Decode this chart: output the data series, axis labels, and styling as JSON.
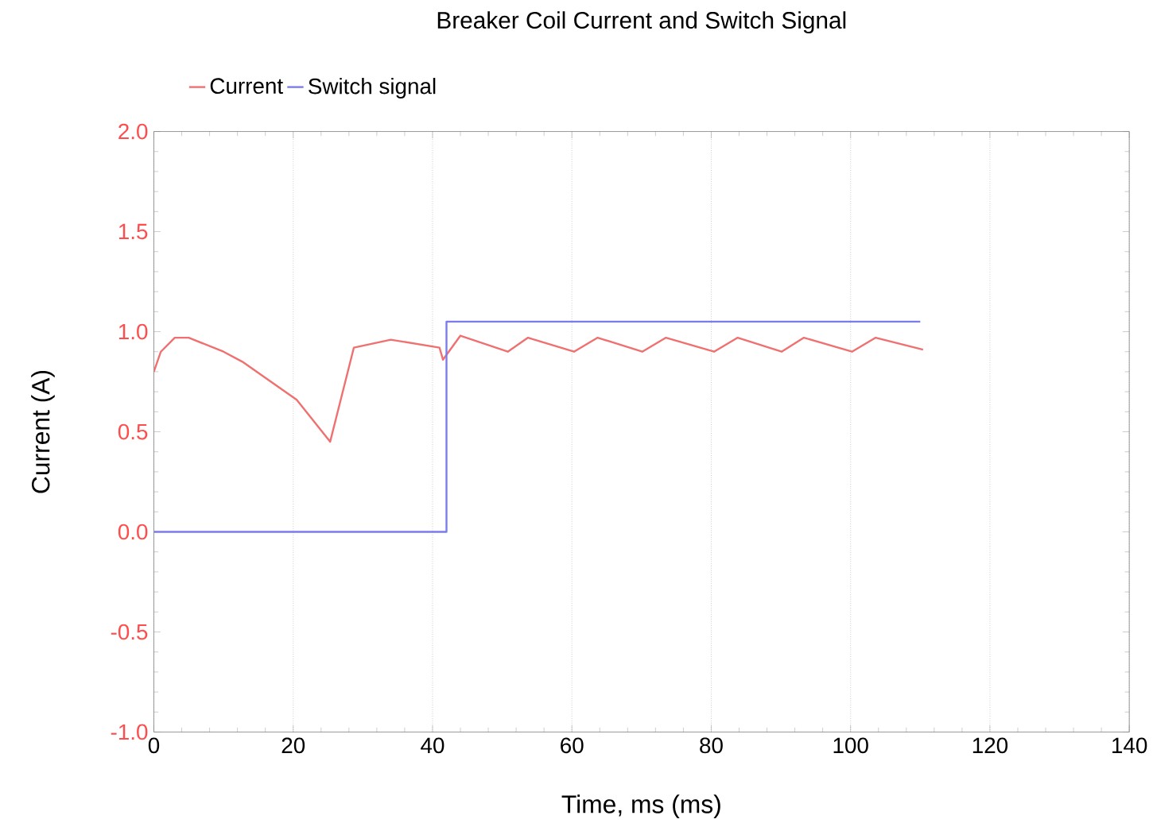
{
  "chart_data": {
    "type": "line",
    "title": "Breaker Coil Current and Switch Signal",
    "xlabel": "Time, ms (ms)",
    "ylabel": "Current (A)",
    "xlim": [
      0,
      140
    ],
    "ylim": [
      -1,
      2
    ],
    "xticks": [
      0,
      20,
      40,
      60,
      80,
      100,
      120,
      140
    ],
    "yticks": [
      {
        "value": -1,
        "label": "-1.0"
      },
      {
        "value": -0.5,
        "label": "-0.5"
      },
      {
        "value": 0,
        "label": "0.0"
      },
      {
        "value": 0.5,
        "label": "0.5"
      },
      {
        "value": 1,
        "label": "1.0"
      },
      {
        "value": 1.5,
        "label": "1.5"
      },
      {
        "value": 2,
        "label": "2.0"
      }
    ],
    "grid": "x",
    "legend": "top left",
    "series": [
      {
        "name": "Current",
        "color": "#f07070",
        "x": [
          0,
          1,
          3,
          5,
          10,
          12.7,
          20.5,
          25.3,
          28.7,
          34,
          41,
          41.5,
          44,
          50.8,
          53.7,
          60.3,
          63.7,
          70.1,
          73.5,
          80.4,
          83.8,
          90.1,
          93.3,
          100.2,
          103.6,
          110.4
        ],
        "values": [
          0.8,
          0.9,
          0.97,
          0.97,
          0.9,
          0.85,
          0.66,
          0.45,
          0.92,
          0.96,
          0.92,
          0.86,
          0.98,
          0.9,
          0.97,
          0.9,
          0.97,
          0.9,
          0.97,
          0.9,
          0.97,
          0.9,
          0.97,
          0.9,
          0.97,
          0.91
        ]
      },
      {
        "name": "Switch signal",
        "color": "#7b7bf0",
        "x": [
          0,
          42,
          42,
          110
        ],
        "values": [
          0,
          0,
          1.05,
          1.05
        ]
      }
    ]
  }
}
